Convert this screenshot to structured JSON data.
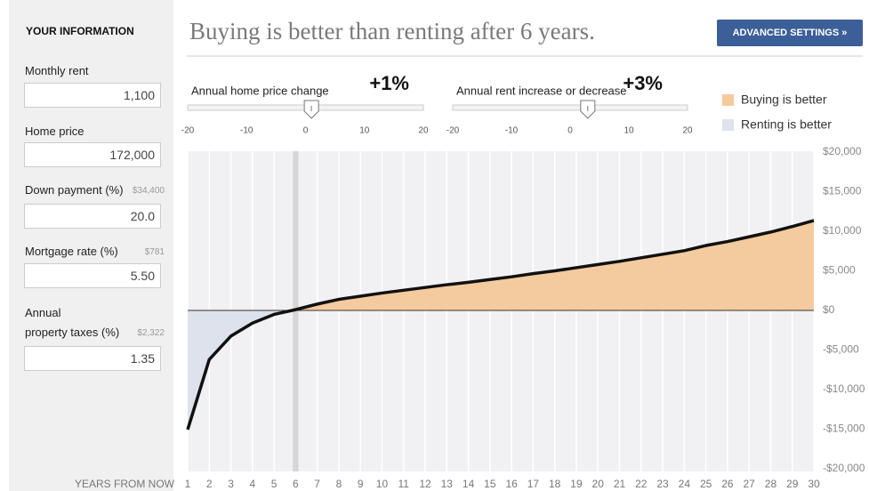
{
  "sidebar": {
    "title": "YOUR INFORMATION",
    "fields": [
      {
        "label": "Monthly rent",
        "value": "1,100"
      },
      {
        "label": "Home price",
        "value": "172,000"
      },
      {
        "label": "Down payment (%)",
        "note": "$34,400",
        "value": "20.0"
      },
      {
        "label": "Mortgage rate (%)",
        "note": "$781",
        "value": "5.50"
      },
      {
        "label": "Annual\nproperty taxes (%)",
        "note": "$2,322",
        "value": "1.35"
      }
    ]
  },
  "header": {
    "title": "Buying is better than renting after 6 years.",
    "button": "ADVANCED SETTINGS »"
  },
  "sliders": [
    {
      "label": "Annual home price change",
      "value": 1,
      "value_label": "+1%",
      "lim": [
        -20,
        20
      ],
      "ticks": [
        -20,
        -10,
        0,
        10,
        20
      ]
    },
    {
      "label": "Annual rent increase or decrease",
      "value": 3,
      "value_label": "+3%",
      "lim": [
        -20,
        20
      ],
      "ticks": [
        -20,
        -10,
        0,
        10,
        20
      ]
    }
  ],
  "chart_data": {
    "type": "area",
    "xlabel": "YEARS FROM NOW",
    "x": [
      1,
      2,
      3,
      4,
      5,
      6,
      7,
      8,
      9,
      10,
      11,
      12,
      13,
      14,
      15,
      16,
      17,
      18,
      19,
      20,
      21,
      22,
      23,
      24,
      25,
      26,
      27,
      28,
      29,
      30
    ],
    "values": [
      -15050,
      -6200,
      -3250,
      -1600,
      -500,
      100,
      800,
      1400,
      1800,
      2200,
      2550,
      2900,
      3250,
      3550,
      3900,
      4250,
      4650,
      5000,
      5400,
      5800,
      6200,
      6650,
      7100,
      7550,
      8200,
      8700,
      9300,
      9900,
      10600,
      11350
    ],
    "line_color": "#111111",
    "legend": [
      {
        "name": "Buying is better",
        "color": "#f4cb9e"
      },
      {
        "name": "Renting is better",
        "color": "#dde2ec"
      }
    ],
    "xlim": [
      1,
      30
    ],
    "xticks": [
      1,
      2,
      3,
      4,
      5,
      6,
      7,
      8,
      9,
      10,
      11,
      12,
      13,
      14,
      15,
      16,
      17,
      18,
      19,
      20,
      21,
      22,
      23,
      24,
      25,
      26,
      27,
      28,
      29,
      30
    ],
    "ylim": [
      -20000,
      20000
    ],
    "yticks": [
      {
        "value": 20000,
        "label": "$20,000"
      },
      {
        "value": 15000,
        "label": "$15,000"
      },
      {
        "value": 10000,
        "label": "$10,000"
      },
      {
        "value": 5000,
        "label": "$5,000"
      },
      {
        "value": 0,
        "label": "$0"
      },
      {
        "value": -5000,
        "label": "-$5,000"
      },
      {
        "value": -10000,
        "label": "-$10,000"
      },
      {
        "value": -15000,
        "label": "-$15,000"
      },
      {
        "value": -20000,
        "label": "-$20,000"
      }
    ],
    "grid": true
  }
}
